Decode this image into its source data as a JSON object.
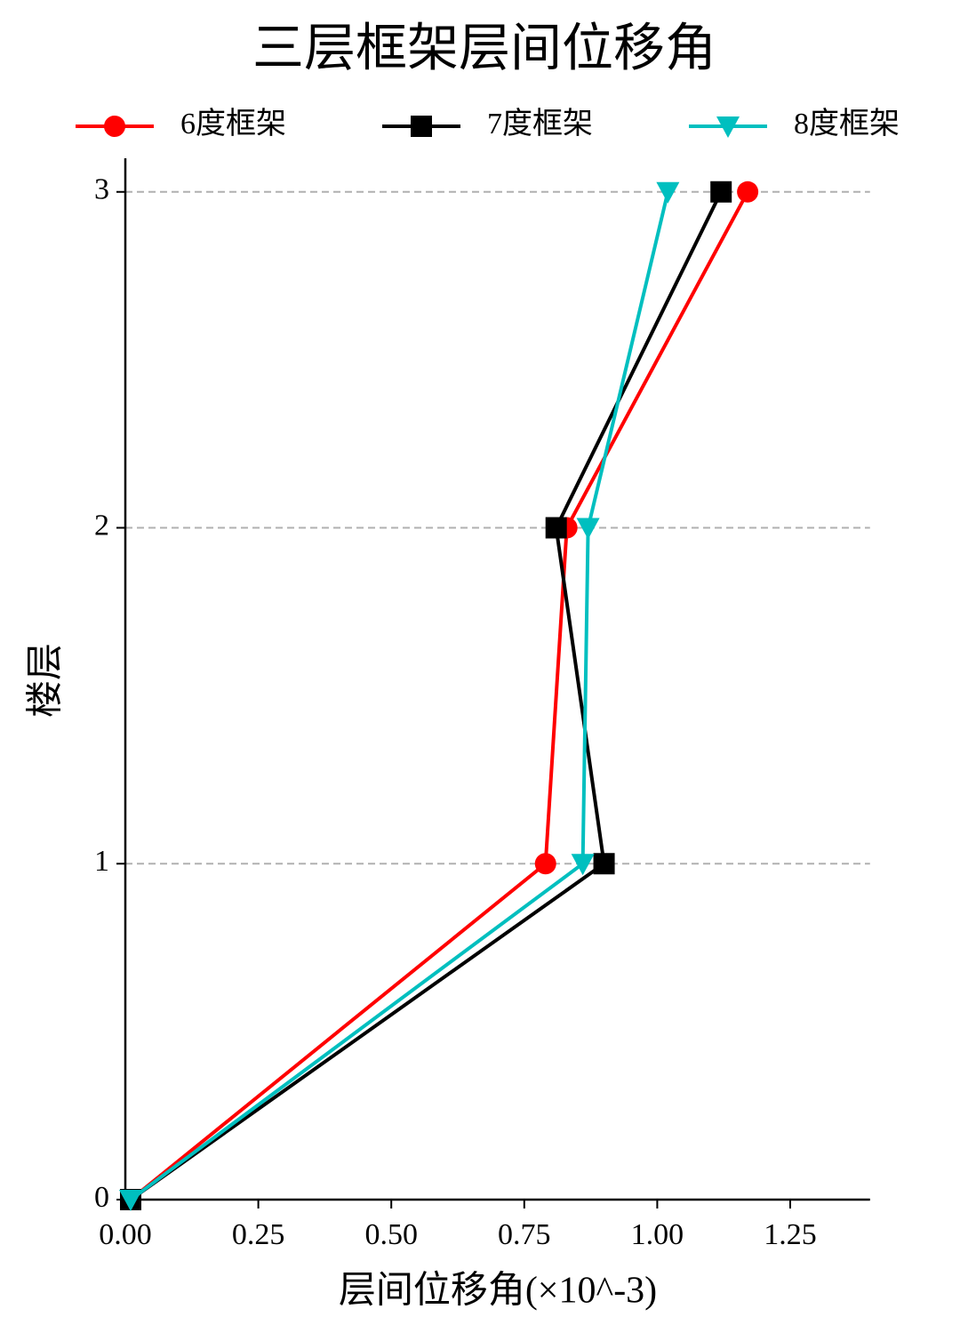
{
  "chart_data": {
    "type": "line",
    "title": "三层框架层间位移角",
    "x_label": "层间位移角(×10^-3)",
    "y_label": "楼层",
    "floors": [
      0,
      1,
      2,
      3
    ],
    "series": [
      {
        "name": "6度框架",
        "color": "#ff0000",
        "marker": "circle",
        "values": [
          0.01,
          0.79,
          0.83,
          1.17
        ]
      },
      {
        "name": "7度框架",
        "color": "#000000",
        "marker": "square",
        "values": [
          0.01,
          0.9,
          0.81,
          1.12
        ]
      },
      {
        "name": "8度框架",
        "color": "#00bfbf",
        "marker": "triangle-down",
        "values": [
          0.01,
          0.86,
          0.87,
          1.02
        ]
      }
    ],
    "xlim": [
      0,
      1.4
    ],
    "xticks": [
      {
        "value": 0,
        "label": "0.00"
      },
      {
        "value": 0.25,
        "label": "0.25"
      },
      {
        "value": 0.5,
        "label": "0.50"
      },
      {
        "value": 0.75,
        "label": "0.75"
      },
      {
        "value": 1,
        "label": "1.00"
      },
      {
        "value": 1.25,
        "label": "1.25"
      }
    ],
    "ylim": [
      0,
      3.1
    ],
    "yticks": [
      0,
      1,
      2,
      3
    ],
    "grid": true
  }
}
